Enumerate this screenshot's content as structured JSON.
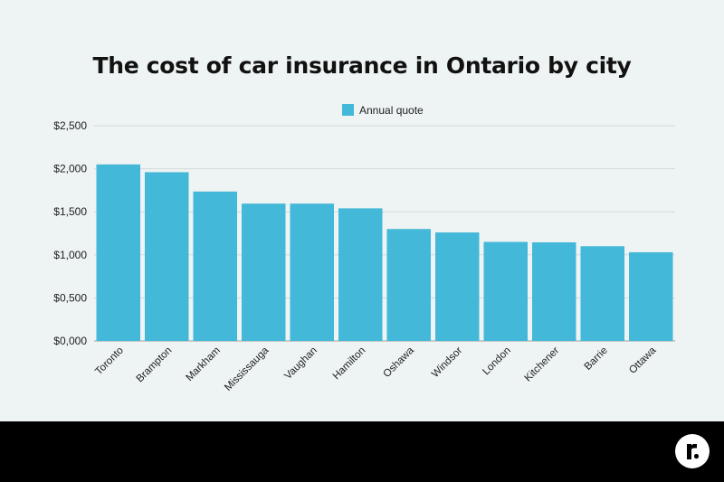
{
  "chart_data": {
    "type": "bar",
    "title": "The cost of car insurance in Ontario by city",
    "xlabel": "",
    "ylabel": "",
    "categories": [
      "Toronto",
      "Brampton",
      "Markham",
      "Mississauga",
      "Vaughan",
      "Hamilton",
      "Oshawa",
      "Windsor",
      "London",
      "Kitchener",
      "Barrie",
      "Ottawa"
    ],
    "series": [
      {
        "name": "Annual quote",
        "values": [
          2050,
          1960,
          1735,
          1595,
          1595,
          1540,
          1300,
          1260,
          1150,
          1145,
          1100,
          1030
        ]
      }
    ],
    "ylim": [
      0,
      2500
    ],
    "yticks": [
      "$0,000",
      "$0,500",
      "$1,000",
      "$1,500",
      "$2,000",
      "$2,500"
    ],
    "grid": true,
    "legend_position": "top-center",
    "bar_color": "#43b8d8"
  },
  "brand": {
    "logo_icon": "rates-r-logo-icon"
  }
}
